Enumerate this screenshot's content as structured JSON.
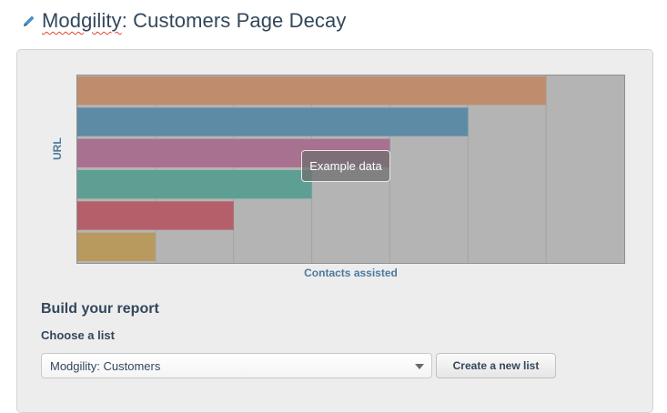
{
  "header": {
    "title_brand": "Modgility",
    "title_rest": ": Customers Page Decay",
    "icon": "pencil-icon"
  },
  "chart_data": {
    "type": "bar",
    "orientation": "horizontal",
    "xlabel": "Contacts assisted",
    "ylabel": "URL",
    "categories": [
      "",
      "",
      "",
      "",
      "",
      ""
    ],
    "values": [
      6,
      5,
      4,
      3,
      2,
      1
    ],
    "xlim": [
      0,
      7
    ],
    "colors": [
      "#c08c6e",
      "#5d8ba6",
      "#a97190",
      "#5da093",
      "#b45f69",
      "#b89a5f"
    ],
    "grid": true,
    "overlay_label": "Example data"
  },
  "builder": {
    "heading": "Build your report",
    "choose_label": "Choose a list",
    "selected_list": "Modgility: Customers",
    "create_button": "Create a new list"
  }
}
